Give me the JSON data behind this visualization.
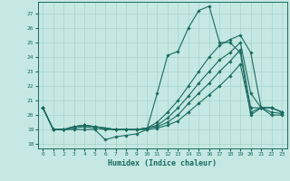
{
  "xlabel": "Humidex (Indice chaleur)",
  "background_color": "#c5e8e2",
  "grid_color": "#a8d4cc",
  "line_color": "#1a6b60",
  "xlim": [
    -0.5,
    23.5
  ],
  "ylim": [
    17.7,
    27.8
  ],
  "yticks": [
    18,
    19,
    20,
    21,
    22,
    23,
    24,
    25,
    26,
    27
  ],
  "xticks": [
    0,
    1,
    2,
    3,
    4,
    5,
    6,
    7,
    8,
    9,
    10,
    11,
    12,
    13,
    14,
    15,
    16,
    17,
    18,
    19,
    20,
    21,
    22,
    23
  ],
  "series": [
    {
      "x": [
        0,
        1,
        2,
        3,
        4,
        5,
        6,
        7,
        8,
        9,
        10,
        11,
        12,
        13,
        14,
        15,
        16,
        17,
        18,
        19,
        20,
        21,
        22,
        23
      ],
      "y": [
        20.5,
        19,
        19,
        19,
        19,
        19,
        18.3,
        18.5,
        18.6,
        18.7,
        19.0,
        21.5,
        24.1,
        24.4,
        26.0,
        27.2,
        27.5,
        25.0,
        25.0,
        24.3,
        20.0,
        20.5,
        20.0,
        20.0
      ]
    },
    {
      "x": [
        0,
        1,
        2,
        3,
        4,
        5,
        6,
        7,
        8,
        9,
        10,
        11,
        12,
        13,
        14,
        15,
        16,
        17,
        18,
        19,
        20,
        21,
        22,
        23
      ],
      "y": [
        20.5,
        19,
        19,
        19.2,
        19.3,
        19.2,
        19.1,
        19.0,
        19.0,
        19.0,
        19.1,
        19.5,
        20.2,
        21.0,
        22.0,
        23.0,
        24.0,
        24.8,
        25.2,
        25.5,
        24.3,
        20.5,
        20.5,
        20.2
      ]
    },
    {
      "x": [
        0,
        1,
        2,
        3,
        4,
        5,
        6,
        7,
        8,
        9,
        10,
        11,
        12,
        13,
        14,
        15,
        16,
        17,
        18,
        19,
        20,
        21,
        22,
        23
      ],
      "y": [
        20.5,
        19,
        19,
        19.2,
        19.3,
        19.2,
        19.1,
        19.0,
        19.0,
        19.0,
        19.1,
        19.3,
        19.8,
        20.5,
        21.3,
        22.2,
        23.0,
        23.8,
        24.3,
        25.0,
        21.5,
        20.5,
        20.5,
        20.2
      ]
    },
    {
      "x": [
        0,
        1,
        2,
        3,
        4,
        5,
        6,
        7,
        8,
        9,
        10,
        11,
        12,
        13,
        14,
        15,
        16,
        17,
        18,
        19,
        20,
        21,
        22,
        23
      ],
      "y": [
        20.5,
        19,
        19,
        19.2,
        19.3,
        19.2,
        19.1,
        19.0,
        19.0,
        19.0,
        19.1,
        19.2,
        19.5,
        20.0,
        20.8,
        21.5,
        22.2,
        23.0,
        23.7,
        24.5,
        20.5,
        20.5,
        20.5,
        20.2
      ]
    },
    {
      "x": [
        0,
        1,
        2,
        3,
        4,
        5,
        6,
        7,
        8,
        9,
        10,
        11,
        12,
        13,
        14,
        15,
        16,
        17,
        18,
        19,
        20,
        21,
        22,
        23
      ],
      "y": [
        20.5,
        19,
        19,
        19.1,
        19.2,
        19.1,
        19.0,
        19.0,
        19.0,
        19.0,
        19.0,
        19.1,
        19.3,
        19.6,
        20.2,
        20.8,
        21.4,
        22.0,
        22.7,
        23.5,
        20.2,
        20.5,
        20.2,
        20.1
      ]
    }
  ]
}
